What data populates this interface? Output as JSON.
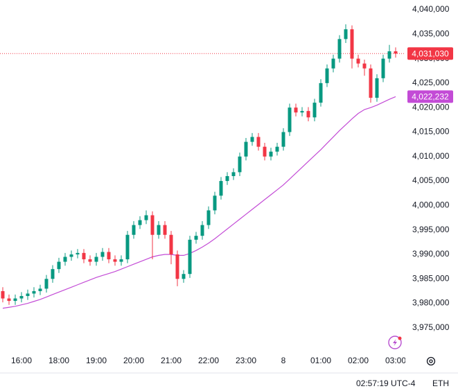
{
  "chart_data": {
    "type": "candlestick",
    "categories": [
      null,
      null,
      null,
      "16:00",
      null,
      null,
      null,
      null,
      null,
      "18:00",
      null,
      null,
      null,
      null,
      null,
      "19:00",
      null,
      null,
      null,
      null,
      null,
      "20:00",
      null,
      null,
      null,
      null,
      null,
      "21:00",
      null,
      null,
      null,
      null,
      null,
      "22:00",
      null,
      null,
      null,
      null,
      null,
      "23:00",
      null,
      null,
      null,
      null,
      null,
      "8",
      null,
      null,
      null,
      null,
      null,
      "01:00",
      null,
      null,
      null,
      null,
      null,
      "02:00",
      null,
      null,
      null,
      null,
      null,
      "03:00"
    ],
    "open": [
      3982500,
      3981000,
      3980500,
      3981000,
      3981500,
      3982000,
      3982500,
      3983000,
      3985000,
      3987000,
      3988500,
      3989500,
      3990000,
      3990300,
      3989000,
      3988500,
      3989500,
      3990500,
      3989000,
      3988500,
      3989000,
      3994000,
      3996000,
      3997000,
      3998000,
      3994000,
      3996000,
      3994000,
      3990000,
      3985000,
      3986000,
      3993000,
      3993800,
      3996000,
      3999000,
      4002000,
      4005000,
      4006000,
      4006800,
      4010000,
      4013000,
      4014000,
      4012000,
      4010000,
      4011000,
      4012000,
      4015000,
      4020000,
      4019000,
      4019300,
      4018000,
      4021000,
      4025000,
      4028000,
      4030000,
      4034000,
      4036000,
      4030000,
      4029000,
      4028000,
      4022000,
      4026000,
      4030000,
      4031500
    ],
    "high": [
      3983300,
      3981800,
      3981800,
      3982300,
      3982800,
      3983300,
      3983800,
      3985800,
      3987800,
      3989300,
      3990300,
      3990800,
      3991100,
      3991100,
      3989800,
      3990300,
      3991300,
      3991300,
      3989800,
      3989800,
      3994800,
      3996800,
      3997800,
      3999000,
      3998800,
      3996800,
      3996800,
      3994800,
      3990800,
      3986800,
      3993800,
      3994600,
      3996800,
      3999800,
      4002800,
      4005800,
      4006800,
      4007600,
      4010800,
      4013800,
      4014800,
      4014800,
      4012800,
      4011800,
      4012800,
      4015800,
      4020800,
      4020800,
      4020100,
      4020100,
      4021800,
      4025800,
      4028800,
      4030800,
      4034800,
      4037000,
      4036800,
      4030800,
      4029800,
      4028800,
      4026800,
      4030800,
      4032800,
      4032300
    ],
    "low": [
      3980200,
      3979700,
      3979700,
      3980200,
      3980700,
      3981200,
      3981700,
      3982200,
      3984200,
      3986200,
      3987700,
      3988700,
      3989200,
      3988200,
      3987700,
      3987700,
      3988700,
      3988200,
      3987700,
      3987700,
      3988200,
      3993200,
      3995200,
      3996200,
      3989000,
      3993200,
      3993200,
      3988000,
      3983500,
      3984200,
      3985200,
      3992200,
      3993000,
      3995200,
      3998200,
      4001200,
      4004200,
      4005200,
      4006000,
      4009200,
      4012200,
      4011200,
      4009200,
      4009200,
      4010200,
      4011200,
      4014200,
      4018200,
      4018200,
      4017200,
      4017200,
      4020200,
      4024200,
      4027200,
      4029200,
      4033200,
      4028000,
      4028200,
      4026500,
      4021000,
      4021200,
      4025200,
      4029200,
      4030200
    ],
    "close": [
      3981000,
      3980500,
      3981000,
      3981500,
      3982000,
      3982500,
      3983000,
      3985000,
      3987000,
      3988500,
      3989500,
      3990000,
      3990300,
      3989000,
      3988500,
      3989500,
      3990500,
      3989000,
      3988500,
      3989000,
      3994000,
      3996000,
      3997000,
      3998000,
      3994000,
      3996000,
      3994000,
      3990000,
      3985000,
      3986000,
      3993000,
      3993800,
      3996000,
      3999000,
      4002000,
      4005000,
      4006000,
      4006800,
      4010000,
      4013000,
      4014000,
      4012000,
      4010000,
      4011000,
      4012000,
      4015000,
      4020000,
      4019000,
      4019300,
      4018000,
      4021000,
      4025000,
      4028000,
      4030000,
      4034000,
      4036000,
      4030000,
      4029000,
      4028000,
      4022000,
      4026000,
      4030000,
      4031500,
      4031030
    ],
    "up_color": "#089981",
    "down_color": "#f23645",
    "moving_average": {
      "color": "#c34bd6",
      "values": [
        3979000,
        3979200,
        3979400,
        3979700,
        3980000,
        3980400,
        3980800,
        3981300,
        3981800,
        3982300,
        3982800,
        3983300,
        3983800,
        3984300,
        3984800,
        3985300,
        3985700,
        3986100,
        3986500,
        3987000,
        3987500,
        3988000,
        3988500,
        3989000,
        3989500,
        3989800,
        3990000,
        3990000,
        3989800,
        3989800,
        3990200,
        3990800,
        3991500,
        3992300,
        3993200,
        3994200,
        3995200,
        3996200,
        3997200,
        3998200,
        3999200,
        4000200,
        4001200,
        4002200,
        4003200,
        4004200,
        4005400,
        4006600,
        4007800,
        4009000,
        4010200,
        4011400,
        4012700,
        4014000,
        4015300,
        4016500,
        4017700,
        4018800,
        4019600,
        4020000,
        4020500,
        4021100,
        4021700,
        4022232
      ],
      "last_label": {
        "value": 4022232,
        "label": "4,022,232"
      }
    },
    "last_price": {
      "value": 4031030,
      "label": "4,031,030"
    },
    "ylim": [
      3970450,
      4041980
    ],
    "yticks": [
      {
        "value": 3975000,
        "label": "3,975,000"
      },
      {
        "value": 3980000,
        "label": "3,980,000"
      },
      {
        "value": 3985000,
        "label": "3,985,000"
      },
      {
        "value": 3990000,
        "label": "3,990,000"
      },
      {
        "value": 3995000,
        "label": "3,995,000"
      },
      {
        "value": 4000000,
        "label": "4,000,000"
      },
      {
        "value": 4005000,
        "label": "4,005,000"
      },
      {
        "value": 4010000,
        "label": "4,010,000"
      },
      {
        "value": 4015000,
        "label": "4,015,000"
      },
      {
        "value": 4020000,
        "label": "4,020,000"
      },
      {
        "value": 4025000,
        "label": "4,025,000"
      },
      {
        "value": 4030000,
        "label": "4,030,000"
      },
      {
        "value": 4035000,
        "label": "4,035,000"
      },
      {
        "value": 4040000,
        "label": "4,040,000"
      }
    ],
    "grid": false
  },
  "status": {
    "clock": "02:57:19 UTC-4",
    "session": "ETH"
  }
}
